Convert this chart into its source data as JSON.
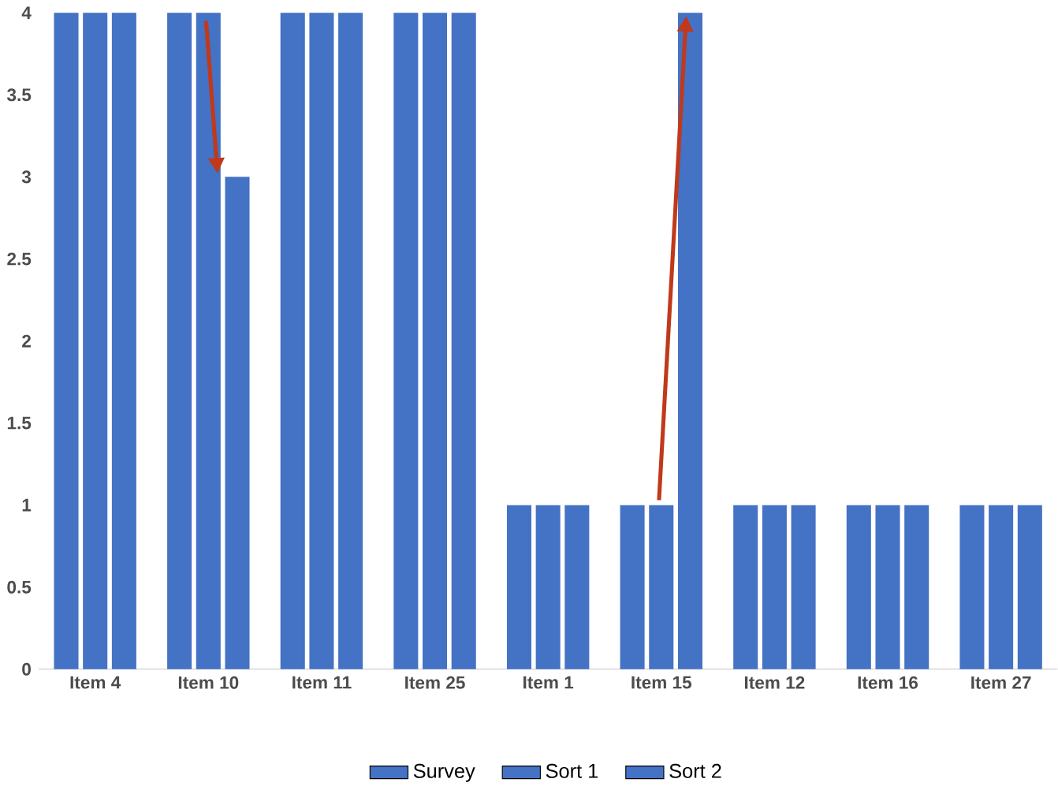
{
  "chart_data": {
    "type": "bar",
    "categories": [
      "Item 4",
      "Item 10",
      "Item 11",
      "Item 25",
      "Item 1",
      "Item 15",
      "Item 12",
      "Item 16",
      "Item 27"
    ],
    "series": [
      {
        "name": "Survey",
        "color": "#4472c4",
        "values": [
          4,
          4,
          4,
          4,
          1,
          1,
          1,
          1,
          1
        ]
      },
      {
        "name": "Sort 1",
        "color": "#4472c4",
        "values": [
          4,
          4,
          4,
          4,
          1,
          1,
          1,
          1,
          1
        ]
      },
      {
        "name": "Sort 2",
        "color": "#4472c4",
        "values": [
          4,
          3,
          4,
          4,
          1,
          4,
          1,
          1,
          1
        ]
      }
    ],
    "ylim": [
      0,
      4
    ],
    "yticks": [
      0,
      0.5,
      1,
      1.5,
      2,
      2.5,
      3,
      3.5,
      4
    ],
    "grid": false,
    "legend": "bottom"
  }
}
